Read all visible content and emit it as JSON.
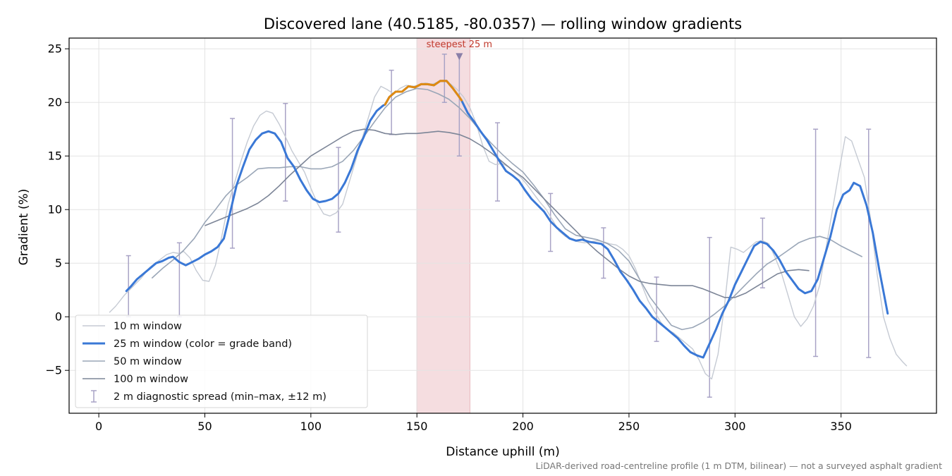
{
  "chart_data": {
    "type": "line",
    "title": "Discovered lane (40.5185, -80.0357) — rolling window gradients",
    "xlabel": "Distance uphill (m)",
    "ylabel": "Gradient (%)",
    "xlim": [
      -14,
      395
    ],
    "ylim": [
      -9,
      26
    ],
    "xticks": [
      0,
      50,
      100,
      150,
      200,
      250,
      300,
      350
    ],
    "yticks": [
      -5,
      0,
      5,
      10,
      15,
      20,
      25
    ],
    "grid": true,
    "legend_position": "bottom-left",
    "highlight_band": {
      "x0": 150,
      "x1": 175,
      "color": "#f5dde0"
    },
    "annotation": {
      "text": "steepest 25 m",
      "x": 170,
      "y": 24.2,
      "color": "#c0392b"
    },
    "footnote": "LiDAR-derived road-centreline profile (1 m DTM, bilinear) — not a surveyed asphalt gradient",
    "series": [
      {
        "name": "10 m window",
        "color": "#c5cad3",
        "width": 1.4,
        "x": [
          5,
          8,
          12,
          16,
          20,
          24,
          28,
          32,
          35,
          38,
          40,
          43,
          46,
          49,
          52,
          55,
          58,
          61,
          64,
          67,
          70,
          73,
          76,
          79,
          82,
          85,
          88,
          91,
          94,
          97,
          100,
          103,
          106,
          109,
          112,
          115,
          118,
          121,
          124,
          127,
          130,
          133,
          136,
          139,
          142,
          145,
          148,
          151,
          154,
          157,
          160,
          163,
          166,
          169,
          172,
          175,
          178,
          181,
          184,
          187,
          190,
          193,
          196,
          199,
          202,
          205,
          208,
          211,
          214,
          217,
          220,
          223,
          226,
          229,
          232,
          235,
          238,
          241,
          244,
          247,
          250,
          253,
          256,
          259,
          262,
          265,
          268,
          271,
          274,
          277,
          280,
          283,
          286,
          289,
          292,
          295,
          298,
          301,
          304,
          307,
          310,
          313,
          316,
          319,
          322,
          325,
          328,
          331,
          334,
          337,
          340,
          343,
          346,
          349,
          352,
          355,
          358,
          361,
          364,
          367,
          370,
          373,
          376,
          379,
          381
        ],
        "y": [
          0.4,
          1,
          2,
          2.8,
          3.6,
          4.6,
          5.2,
          5.8,
          6,
          5.9,
          6.1,
          5.5,
          4.3,
          3.4,
          3.3,
          4.8,
          7.5,
          10.5,
          12.5,
          14.5,
          16.3,
          17.8,
          18.8,
          19.2,
          19,
          18,
          16.8,
          15.5,
          14.5,
          13.5,
          12,
          10.6,
          9.6,
          9.4,
          9.7,
          10.5,
          12.5,
          14.5,
          16.5,
          18.5,
          20.5,
          21.5,
          21.2,
          20.8,
          21.3,
          21.6,
          21.5,
          21.6,
          21.8,
          21.7,
          21.9,
          22,
          21.7,
          21.2,
          20.5,
          19.5,
          18,
          16,
          14.5,
          14.2,
          14.3,
          14,
          13.5,
          13,
          12.3,
          11.5,
          10.7,
          10,
          9,
          8,
          7.5,
          7.2,
          7,
          6.9,
          7,
          7.1,
          7,
          6.8,
          6.7,
          6.3,
          5.7,
          4.5,
          3,
          1.5,
          0.5,
          -0.5,
          -1.2,
          -1.5,
          -2,
          -2.5,
          -3,
          -4,
          -5.3,
          -5.8,
          -3.5,
          1,
          6.5,
          6.3,
          6,
          6.5,
          7,
          7.1,
          6.8,
          5.5,
          4,
          2,
          0,
          -0.9,
          -0.2,
          1,
          3,
          6.5,
          10,
          13.5,
          16.8,
          16.4,
          14.7,
          13,
          9,
          4,
          0,
          -2,
          -3.5,
          -4.2,
          -4.6
        ]
      },
      {
        "name": "25 m window (color = grade band)",
        "color": "#3a78d6",
        "steep_color": "#e08a10",
        "steep_range": [
          135,
          171
        ],
        "width": 3,
        "x": [
          13,
          15,
          18,
          21,
          24,
          27,
          30,
          33,
          35,
          38,
          41,
          44,
          47,
          50,
          53,
          56,
          59,
          62,
          65,
          68,
          71,
          74,
          77,
          80,
          83,
          86,
          89,
          92,
          95,
          98,
          101,
          104,
          107,
          110,
          113,
          116,
          119,
          122,
          125,
          128,
          131,
          134,
          135,
          137,
          140,
          143,
          146,
          149,
          152,
          155,
          158,
          161,
          164,
          167,
          170,
          171,
          174,
          177,
          180,
          183,
          186,
          189,
          192,
          195,
          198,
          201,
          204,
          207,
          210,
          213,
          216,
          219,
          222,
          225,
          228,
          231,
          234,
          237,
          240,
          243,
          246,
          249,
          252,
          255,
          258,
          261,
          264,
          267,
          270,
          273,
          276,
          279,
          282,
          285,
          288,
          291,
          294,
          297,
          300,
          303,
          306,
          309,
          312,
          315,
          318,
          321,
          324,
          327,
          330,
          333,
          336,
          339,
          342,
          345,
          348,
          351,
          354,
          356,
          359,
          362,
          365,
          368,
          372
        ],
        "y": [
          2.4,
          2.8,
          3.5,
          4,
          4.5,
          5,
          5.2,
          5.5,
          5.6,
          5.1,
          4.8,
          5.1,
          5.4,
          5.8,
          6.1,
          6.5,
          7.3,
          9.8,
          12.3,
          14,
          15.6,
          16.5,
          17.1,
          17.3,
          17.1,
          16.3,
          14.8,
          14,
          12.8,
          11.8,
          11,
          10.7,
          10.8,
          11,
          11.5,
          12.5,
          13.8,
          15.5,
          16.8,
          18.3,
          19.2,
          19.7,
          19.8,
          20.5,
          21,
          21,
          21.5,
          21.4,
          21.7,
          21.7,
          21.6,
          22,
          22,
          21.3,
          20.5,
          20.2,
          19,
          18.2,
          17.3,
          16.5,
          15.5,
          14.5,
          13.6,
          13.2,
          12.7,
          11.8,
          11,
          10.4,
          9.8,
          8.9,
          8.3,
          7.8,
          7.3,
          7.1,
          7.2,
          7,
          6.9,
          6.8,
          6.3,
          5.3,
          4.2,
          3.4,
          2.5,
          1.5,
          0.8,
          0,
          -0.5,
          -1,
          -1.5,
          -2,
          -2.7,
          -3.3,
          -3.6,
          -3.8,
          -2.5,
          -1.2,
          0.3,
          1.5,
          3,
          4.2,
          5.4,
          6.6,
          7,
          6.8,
          6.2,
          5.3,
          4.2,
          3.4,
          2.6,
          2.2,
          2.4,
          3.5,
          5.5,
          7.5,
          10,
          11.4,
          11.8,
          12.5,
          12.2,
          10.4,
          7.8,
          4.4,
          0.3
        ]
      },
      {
        "name": "50 m window",
        "color": "#9aa6b7",
        "width": 1.6,
        "x": [
          25,
          30,
          35,
          40,
          45,
          50,
          55,
          60,
          65,
          70,
          75,
          80,
          85,
          90,
          95,
          100,
          105,
          110,
          115,
          120,
          125,
          130,
          135,
          140,
          145,
          150,
          155,
          160,
          165,
          170,
          175,
          180,
          185,
          190,
          195,
          200,
          205,
          210,
          215,
          220,
          225,
          230,
          235,
          240,
          245,
          250,
          255,
          260,
          265,
          270,
          275,
          280,
          285,
          290,
          295,
          300,
          305,
          310,
          315,
          320,
          325,
          330,
          335,
          340,
          345,
          350,
          355,
          360
        ],
        "y": [
          3.6,
          4.5,
          5.3,
          6.2,
          7.3,
          8.8,
          10,
          11.3,
          12.3,
          13,
          13.8,
          13.9,
          13.9,
          14,
          14,
          13.8,
          13.8,
          14,
          14.5,
          15.5,
          16.8,
          18.2,
          19.5,
          20.5,
          21,
          21.3,
          21.2,
          20.8,
          20.3,
          19.5,
          18.5,
          17.3,
          16.2,
          15.2,
          14.3,
          13.5,
          12.3,
          11,
          9.5,
          8.2,
          7.6,
          7.4,
          7.2,
          6.8,
          6.2,
          5.2,
          3.5,
          1.8,
          0.5,
          -0.8,
          -1.2,
          -1,
          -0.5,
          0.2,
          1,
          2,
          3,
          4,
          4.9,
          5.5,
          6.2,
          6.9,
          7.3,
          7.5,
          7.2,
          6.6,
          6.1,
          5.6
        ]
      },
      {
        "name": "100 m window",
        "color": "#7c8597",
        "width": 1.6,
        "x": [
          50,
          55,
          60,
          65,
          70,
          75,
          80,
          85,
          90,
          95,
          100,
          105,
          110,
          115,
          120,
          125,
          130,
          135,
          140,
          145,
          150,
          155,
          160,
          165,
          170,
          175,
          180,
          185,
          190,
          195,
          200,
          205,
          210,
          215,
          220,
          225,
          230,
          235,
          240,
          245,
          250,
          255,
          260,
          265,
          270,
          275,
          280,
          285,
          290,
          295,
          300,
          305,
          310,
          315,
          320,
          325,
          330,
          335
        ],
        "y": [
          8.5,
          8.9,
          9.3,
          9.7,
          10.1,
          10.6,
          11.3,
          12.2,
          13.2,
          14.1,
          15,
          15.6,
          16.2,
          16.8,
          17.3,
          17.5,
          17.4,
          17.1,
          17,
          17.1,
          17.1,
          17.2,
          17.3,
          17.2,
          17,
          16.6,
          16,
          15.3,
          14.5,
          13.7,
          13,
          12,
          11,
          10,
          9,
          8,
          7,
          6.1,
          5.3,
          4.5,
          3.8,
          3.3,
          3.1,
          3,
          2.9,
          2.9,
          2.9,
          2.6,
          2.2,
          1.8,
          1.8,
          2.2,
          2.8,
          3.4,
          4,
          4.3,
          4.4,
          4.3
        ]
      }
    ],
    "error_bars": {
      "name": "2 m diagnostic spread (min–max, ±12 m)",
      "color": "#a9a3c6",
      "x": [
        14,
        38,
        63,
        88,
        113,
        138,
        163,
        170,
        188,
        213,
        238,
        263,
        288,
        313,
        338,
        363
      ],
      "low": [
        0,
        0,
        6.4,
        10.8,
        7.9,
        17,
        20,
        15,
        10.8,
        6.1,
        3.6,
        -2.3,
        -7.5,
        2.7,
        -3.7,
        -3.8
      ],
      "high": [
        5.7,
        6.9,
        18.5,
        19.9,
        15.8,
        23,
        24.5,
        24.5,
        18.1,
        11.5,
        8.3,
        3.7,
        7.4,
        9.2,
        17.5,
        17.5
      ]
    }
  }
}
